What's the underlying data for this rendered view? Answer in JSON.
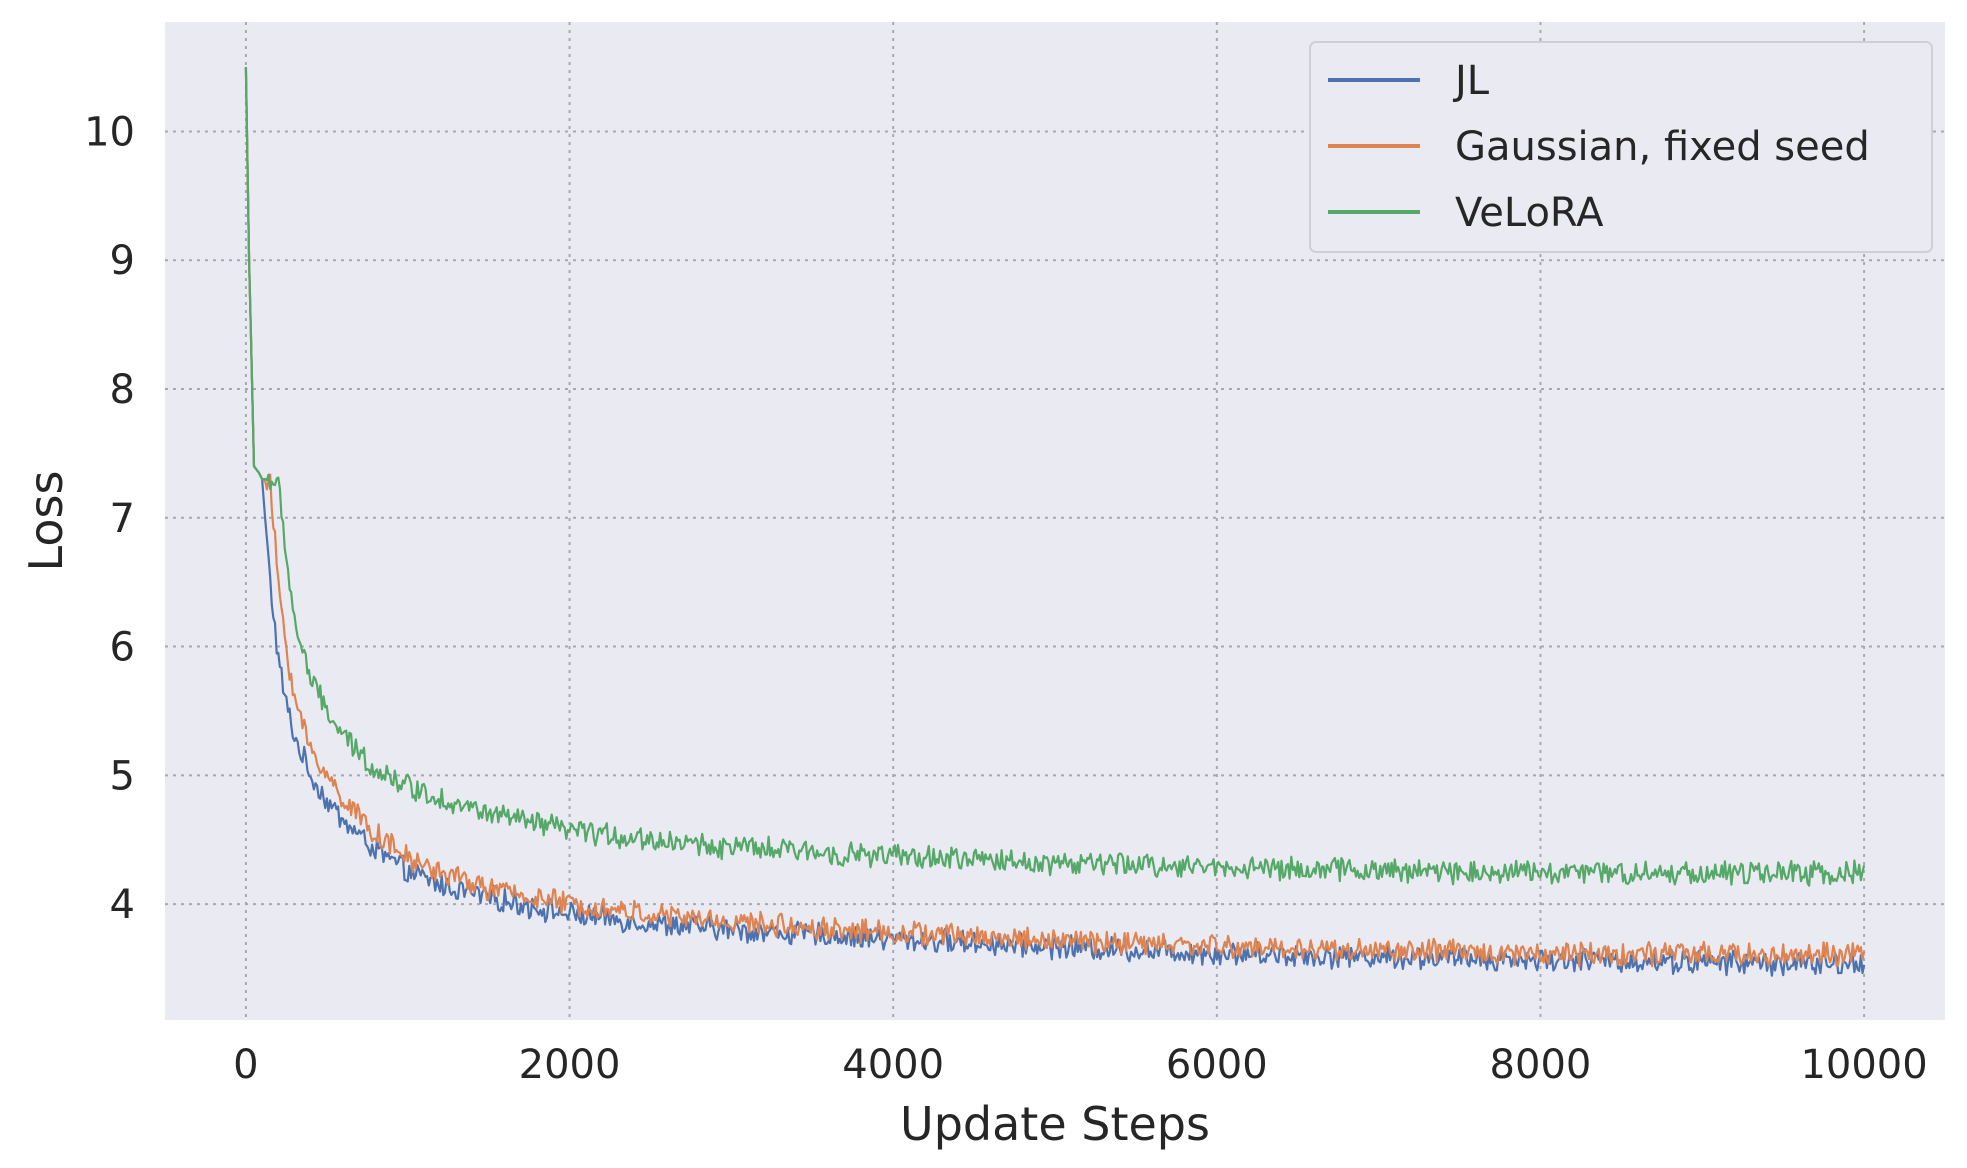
{
  "chart_data": {
    "type": "line",
    "title": "",
    "xlabel": "Update Steps",
    "ylabel": "Loss",
    "xlim": [
      -500,
      10500
    ],
    "ylim": [
      3.1,
      10.85
    ],
    "xticks": [
      0,
      2000,
      4000,
      6000,
      8000,
      10000
    ],
    "yticks": [
      4,
      5,
      6,
      7,
      8,
      9,
      10
    ],
    "grid": true,
    "grid_style": "dotted",
    "legend_position": "top-right",
    "background_color": "#eaeaf2",
    "series": [
      {
        "name": "JL",
        "color": "#4c72b0",
        "noise": 0.08,
        "x": [
          0,
          20,
          50,
          80,
          100,
          150,
          200,
          250,
          300,
          400,
          500,
          600,
          800,
          1000,
          1200,
          1500,
          2000,
          2500,
          3000,
          4000,
          5000,
          6000,
          7000,
          8000,
          9000,
          10000
        ],
        "y": [
          10.5,
          9.0,
          7.4,
          7.35,
          7.3,
          6.5,
          5.9,
          5.55,
          5.3,
          5.0,
          4.8,
          4.65,
          4.42,
          4.25,
          4.15,
          4.05,
          3.92,
          3.85,
          3.8,
          3.73,
          3.67,
          3.62,
          3.59,
          3.57,
          3.55,
          3.53
        ]
      },
      {
        "name": "Gaussian, fixed seed",
        "color": "#dd8452",
        "noise": 0.08,
        "x": [
          0,
          20,
          50,
          80,
          100,
          150,
          200,
          250,
          300,
          400,
          500,
          600,
          800,
          1000,
          1200,
          1500,
          2000,
          2500,
          3000,
          4000,
          5000,
          6000,
          7000,
          8000,
          9000,
          10000
        ],
        "y": [
          10.5,
          9.0,
          7.4,
          7.35,
          7.3,
          7.25,
          6.5,
          6.0,
          5.6,
          5.2,
          5.0,
          4.82,
          4.55,
          4.35,
          4.25,
          4.12,
          4.0,
          3.92,
          3.86,
          3.78,
          3.72,
          3.67,
          3.64,
          3.62,
          3.61,
          3.6
        ]
      },
      {
        "name": "VeLoRA",
        "color": "#55a868",
        "noise": 0.08,
        "x": [
          0,
          20,
          50,
          80,
          100,
          150,
          200,
          250,
          300,
          400,
          500,
          600,
          800,
          1000,
          1200,
          1500,
          2000,
          2500,
          3000,
          4000,
          5000,
          6000,
          7000,
          8000,
          9000,
          10000
        ],
        "y": [
          10.5,
          9.0,
          7.4,
          7.35,
          7.3,
          7.3,
          7.25,
          6.7,
          6.2,
          5.75,
          5.5,
          5.3,
          5.05,
          4.92,
          4.82,
          4.7,
          4.57,
          4.5,
          4.44,
          4.37,
          4.32,
          4.29,
          4.26,
          4.25,
          4.24,
          4.24
        ]
      }
    ]
  }
}
